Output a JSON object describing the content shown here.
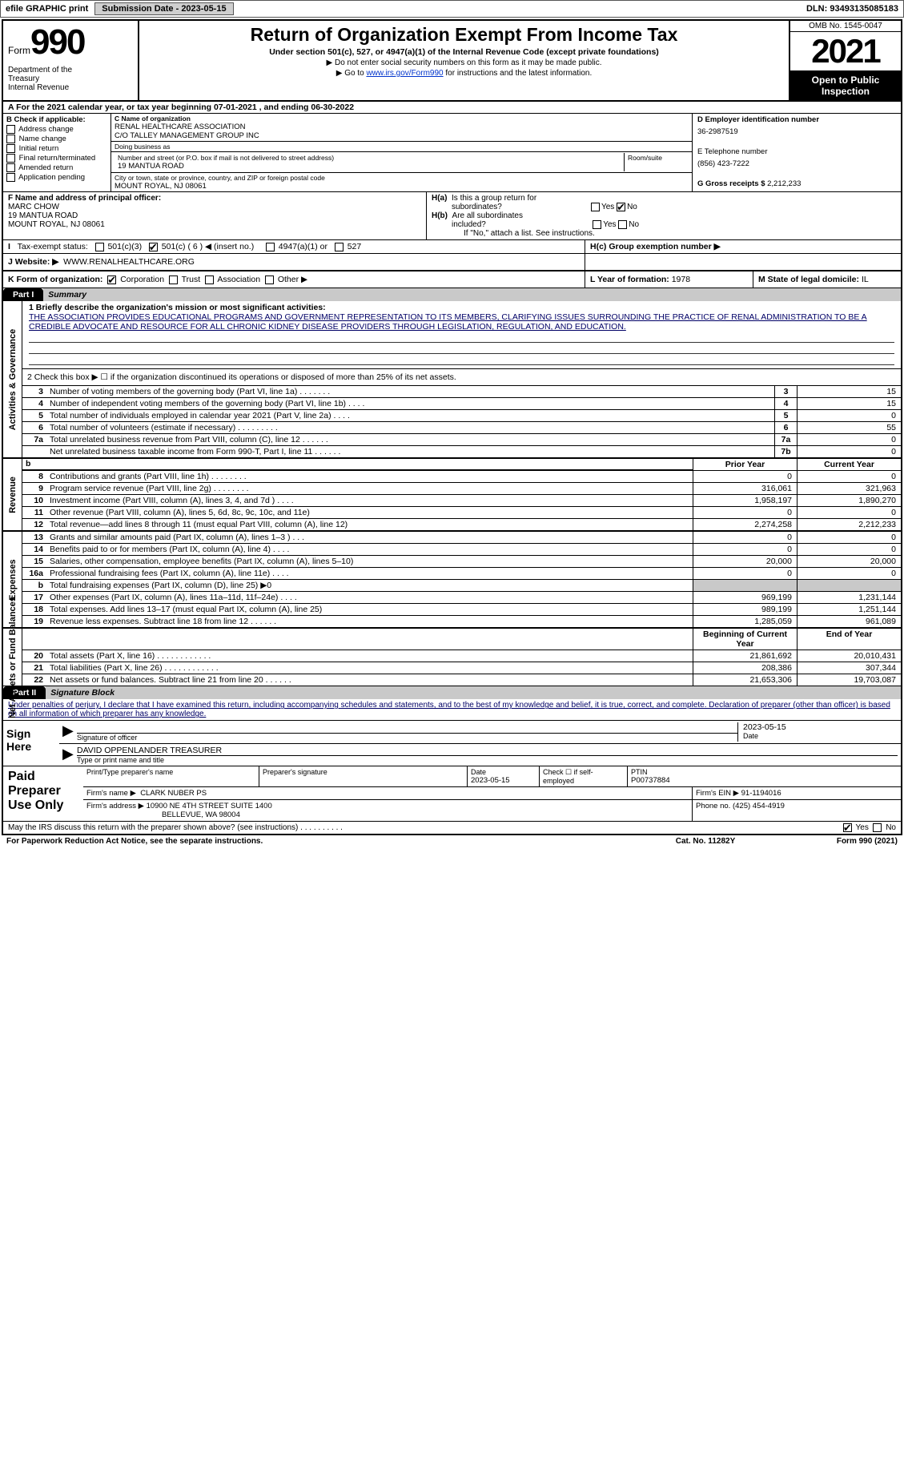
{
  "topbar": {
    "efile": "efile GRAPHIC print",
    "submission_label": "Submission Date - 2023-05-15",
    "dln": "DLN: 93493135085183"
  },
  "header": {
    "form_prefix": "Form",
    "form_number": "990",
    "title": "Return of Organization Exempt From Income Tax",
    "sub1": "Under section 501(c), 527, or 4947(a)(1) of the Internal Revenue Code (except private foundations)",
    "sub2": "▶ Do not enter social security numbers on this form as it may be made public.",
    "sub3_pre": "▶ Go to ",
    "sub3_link": "www.irs.gov/Form990",
    "sub3_post": " for instructions and the latest information.",
    "dept": "Department of the Treasury\nInternal Revenue Service",
    "omb": "OMB No. 1545-0047",
    "year": "2021",
    "open_public": "Open to Public Inspection"
  },
  "period": {
    "text_pre": "A For the 2021 calendar year, or tax year beginning ",
    "begin": "07-01-2021",
    "text_mid": " , and ending ",
    "end": "06-30-2022"
  },
  "section_b": {
    "label": "B Check if applicable:",
    "opts": [
      "Address change",
      "Name change",
      "Initial return",
      "Final return/terminated",
      "Amended return",
      "Application pending"
    ]
  },
  "section_c": {
    "name_label": "C Name of organization",
    "name1": "RENAL HEALTHCARE ASSOCIATION",
    "name2": "C/O TALLEY MANAGEMENT GROUP INC",
    "dba_label": "Doing business as",
    "dba": "",
    "street_label": "Number and street (or P.O. box if mail is not delivered to street address)",
    "room_label": "Room/suite",
    "street": "19 MANTUA ROAD",
    "city_label": "City or town, state or province, country, and ZIP or foreign postal code",
    "city": "MOUNT ROYAL, NJ  08061"
  },
  "section_d": {
    "label": "D Employer identification number",
    "ein": "36-2987519",
    "phone_label": "E Telephone number",
    "phone": "(856) 423-7222",
    "gross_label": "G Gross receipts $",
    "gross": "2,212,233"
  },
  "section_f": {
    "label": "F Name and address of principal officer:",
    "name": "MARC CHOW",
    "addr1": "19 MANTUA ROAD",
    "addr2": "MOUNT ROYAL, NJ  08061"
  },
  "section_h": {
    "ha_label": "H(a)  Is this a group return for subordinates?",
    "hb_label": "H(b)  Are all subordinates included?",
    "hb_note": "If \"No,\" attach a list. See instructions.",
    "hc_label": "H(c)  Group exemption number ▶"
  },
  "section_i": {
    "label": "I  Tax-exempt status:",
    "c3": "501(c)(3)",
    "c_other": "501(c) ( 6 ) ◀ (insert no.)",
    "a4947": "4947(a)(1) or",
    "s527": "527"
  },
  "section_j": {
    "label": "J  Website: ▶",
    "url": "WWW.RENALHEALTHCARE.ORG"
  },
  "section_k": {
    "label": "K Form of organization:",
    "opts": [
      "Corporation",
      "Trust",
      "Association",
      "Other ▶"
    ],
    "l_label": "L Year of formation:",
    "l_val": "1978",
    "m_label": "M State of legal domicile:",
    "m_val": "IL"
  },
  "part1": {
    "tab": "Part I",
    "title": "Summary",
    "q1_label": "1 Briefly describe the organization's mission or most significant activities:",
    "mission": "THE ASSOCIATION PROVIDES EDUCATIONAL PROGRAMS AND GOVERNMENT REPRESENTATION TO ITS MEMBERS, CLARIFYING ISSUES SURROUNDING THE PRACTICE OF RENAL ADMINISTRATION TO BE A CREDIBLE ADVOCATE AND RESOURCE FOR ALL CHRONIC KIDNEY DISEASE PROVIDERS THROUGH LEGISLATION, REGULATION, AND EDUCATION.",
    "q2": "2   Check this box ▶ ☐ if the organization discontinued its operations or disposed of more than 25% of its net assets.",
    "governance_label": "Activities & Governance",
    "rows_gov": [
      {
        "n": "3",
        "d": "Number of voting members of the governing body (Part VI, line 1a)  .    .    .    .    .    .    .",
        "b": "3",
        "v": "15"
      },
      {
        "n": "4",
        "d": "Number of independent voting members of the governing body (Part VI, line 1b)   .    .    .    .",
        "b": "4",
        "v": "15"
      },
      {
        "n": "5",
        "d": "Total number of individuals employed in calendar year 2021 (Part V, line 2a)   .    .    .    .",
        "b": "5",
        "v": "0"
      },
      {
        "n": "6",
        "d": "Total number of volunteers (estimate if necessary)   .    .    .    .    .    .    .    .    .",
        "b": "6",
        "v": "55"
      },
      {
        "n": "7a",
        "d": "Total unrelated business revenue from Part VIII, column (C), line 12   .    .    .    .    .    .",
        "b": "7a",
        "v": "0"
      },
      {
        "n": "",
        "d": "Net unrelated business taxable income from Form 990-T, Part I, line 11   .    .    .    .    .    .",
        "b": "7b",
        "v": "0"
      }
    ],
    "revenue_label": "Revenue",
    "prior_year": "Prior Year",
    "current_year": "Current Year",
    "rows_rev": [
      {
        "n": "8",
        "d": "Contributions and grants (Part VIII, line 1h)   .    .    .    .    .    .    .    .",
        "py": "0",
        "cy": "0"
      },
      {
        "n": "9",
        "d": "Program service revenue (Part VIII, line 2g)   .    .    .    .    .    .    .    .",
        "py": "316,061",
        "cy": "321,963"
      },
      {
        "n": "10",
        "d": "Investment income (Part VIII, column (A), lines 3, 4, and 7d )   .    .    .    .",
        "py": "1,958,197",
        "cy": "1,890,270"
      },
      {
        "n": "11",
        "d": "Other revenue (Part VIII, column (A), lines 5, 6d, 8c, 9c, 10c, and 11e)",
        "py": "0",
        "cy": "0"
      },
      {
        "n": "12",
        "d": "Total revenue—add lines 8 through 11 (must equal Part VIII, column (A), line 12)",
        "py": "2,274,258",
        "cy": "2,212,233"
      }
    ],
    "expenses_label": "Expenses",
    "rows_exp": [
      {
        "n": "13",
        "d": "Grants and similar amounts paid (Part IX, column (A), lines 1–3 )   .    .    .",
        "py": "0",
        "cy": "0"
      },
      {
        "n": "14",
        "d": "Benefits paid to or for members (Part IX, column (A), line 4)   .    .    .    .",
        "py": "0",
        "cy": "0"
      },
      {
        "n": "15",
        "d": "Salaries, other compensation, employee benefits (Part IX, column (A), lines 5–10)",
        "py": "20,000",
        "cy": "20,000"
      },
      {
        "n": "16a",
        "d": "Professional fundraising fees (Part IX, column (A), line 11e)   .    .    .    .",
        "py": "0",
        "cy": "0"
      },
      {
        "n": "b",
        "d": "Total fundraising expenses (Part IX, column (D), line 25) ▶0",
        "py": "",
        "cy": "",
        "shaded": true
      },
      {
        "n": "17",
        "d": "Other expenses (Part IX, column (A), lines 11a–11d, 11f–24e)   .    .    .    .",
        "py": "969,199",
        "cy": "1,231,144"
      },
      {
        "n": "18",
        "d": "Total expenses. Add lines 13–17 (must equal Part IX, column (A), line 25)",
        "py": "989,199",
        "cy": "1,251,144"
      },
      {
        "n": "19",
        "d": "Revenue less expenses. Subtract line 18 from line 12   .    .    .    .    .    .",
        "py": "1,285,059",
        "cy": "961,089"
      }
    ],
    "netassets_label": "Net Assets or Fund Balances",
    "boy": "Beginning of Current Year",
    "eoy": "End of Year",
    "rows_na": [
      {
        "n": "20",
        "d": "Total assets (Part X, line 16)   .    .    .    .    .    .    .    .    .    .    .    .",
        "py": "21,861,692",
        "cy": "20,010,431"
      },
      {
        "n": "21",
        "d": "Total liabilities (Part X, line 26)   .    .    .    .    .    .    .    .    .    .    .    .",
        "py": "208,386",
        "cy": "307,344"
      },
      {
        "n": "22",
        "d": "Net assets or fund balances. Subtract line 21 from line 20   .    .    .    .    .    .",
        "py": "21,653,306",
        "cy": "19,703,087"
      }
    ]
  },
  "part2": {
    "tab": "Part II",
    "title": "Signature Block",
    "statement": "Under penalties of perjury, I declare that I have examined this return, including accompanying schedules and statements, and to the best of my knowledge and belief, it is true, correct, and complete. Declaration of preparer (other than officer) is based on all information of which preparer has any knowledge.",
    "sign_here": "Sign Here",
    "sig_officer": "Signature of officer",
    "sig_date": "2023-05-15",
    "date_label": "Date",
    "officer_name": "DAVID OPPENLANDER  TREASURER",
    "type_label": "Type or print name and title",
    "paid_label": "Paid Preparer Use Only",
    "prep_name_label": "Print/Type preparer's name",
    "prep_sig_label": "Preparer's signature",
    "prep_date_label": "Date",
    "prep_date": "2023-05-15",
    "check_self": "Check ☐ if self-employed",
    "ptin_label": "PTIN",
    "ptin": "P00737884",
    "firm_name_label": "Firm's name    ▶",
    "firm_name": "CLARK NUBER PS",
    "firm_ein_label": "Firm's EIN ▶",
    "firm_ein": "91-1194016",
    "firm_addr_label": "Firm's address ▶",
    "firm_addr1": "10900 NE 4TH STREET SUITE 1400",
    "firm_addr2": "BELLEVUE, WA  98004",
    "firm_phone_label": "Phone no.",
    "firm_phone": "(425) 454-4919",
    "discuss": "May the IRS discuss this return with the preparer shown above? (see instructions)   .    .    .    .    .    .    .    .    .    .",
    "yes": "Yes",
    "no": "No"
  },
  "footer": {
    "pra": "For Paperwork Reduction Act Notice, see the separate instructions.",
    "cat": "Cat. No. 11282Y",
    "form": "Form 990 (2021)"
  }
}
